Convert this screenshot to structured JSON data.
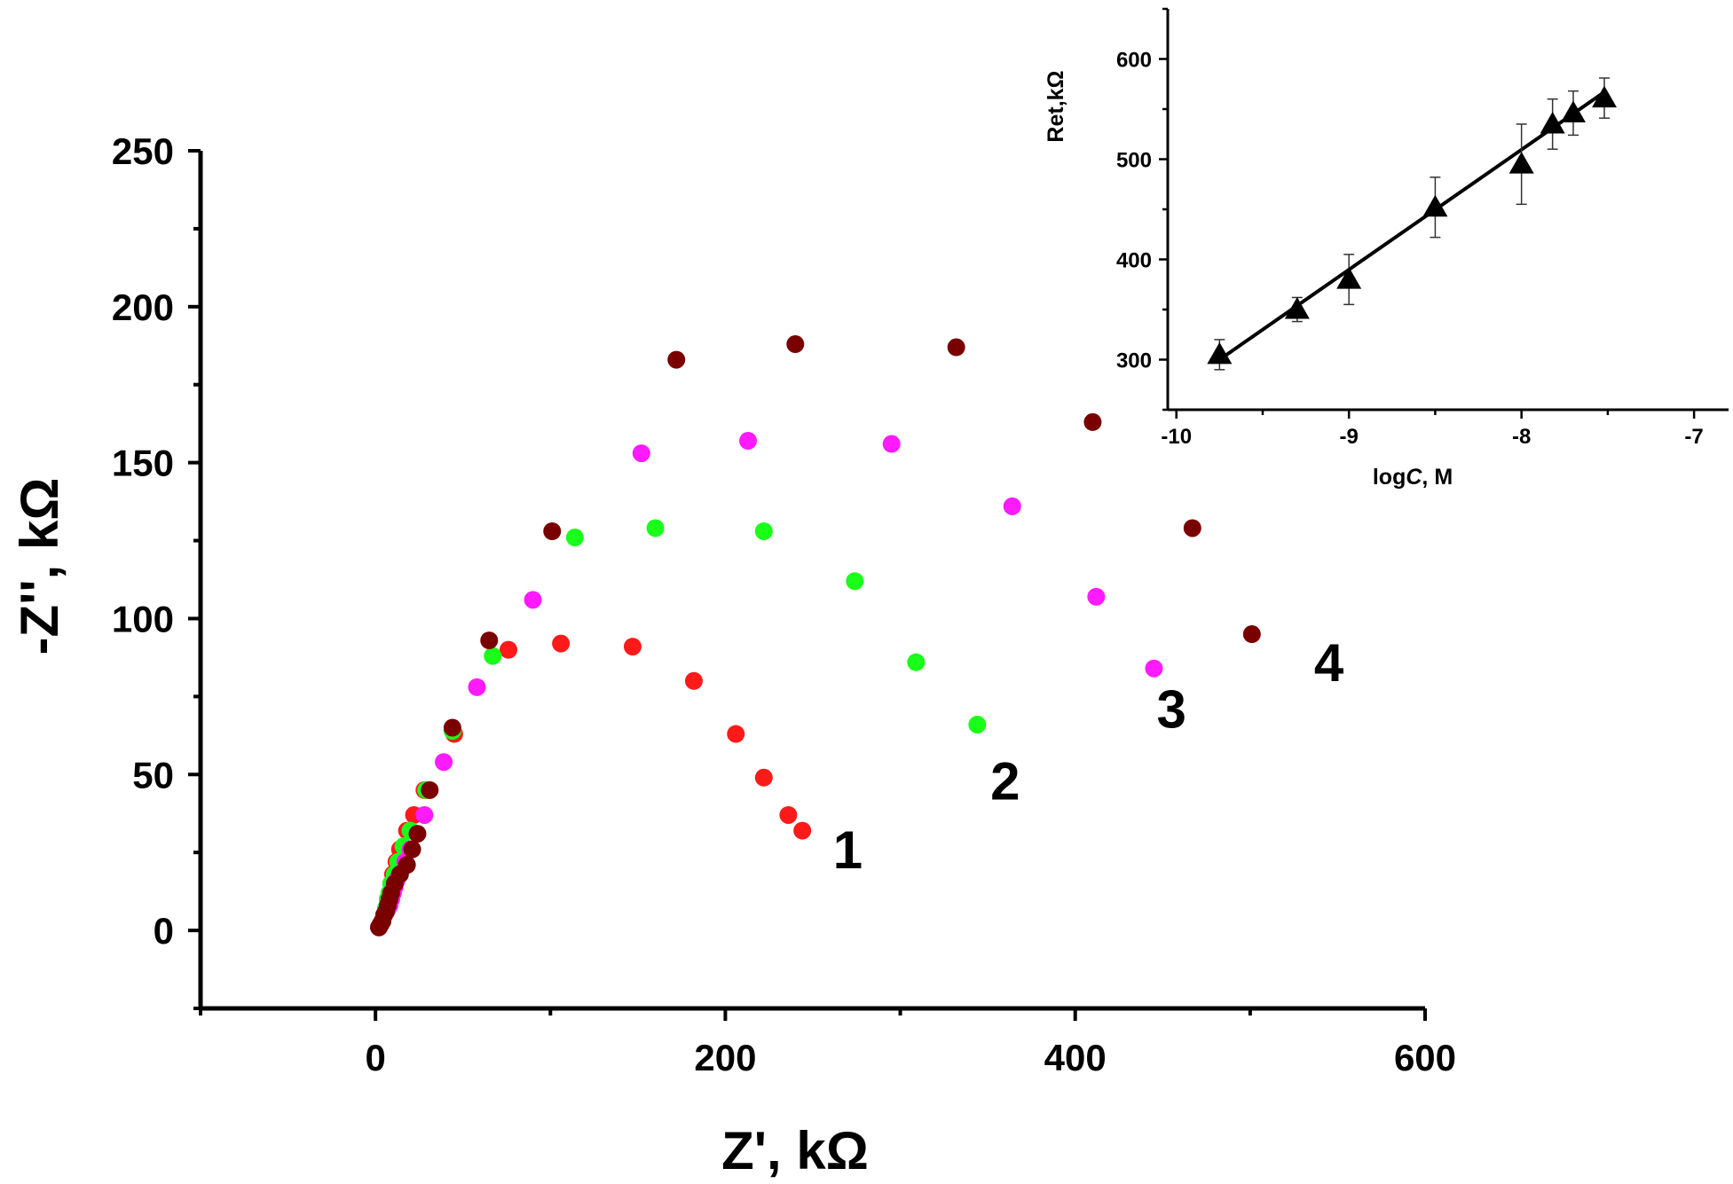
{
  "chart_data": [
    {
      "type": "scatter",
      "title": "",
      "xlabel": "Z', kΩ",
      "ylabel": "-Z'', kΩ",
      "xlim": [
        -100,
        600
      ],
      "ylim": [
        -25,
        250
      ],
      "x_ticks": [
        "0",
        "200",
        "400",
        "600"
      ],
      "y_ticks": [
        "0",
        "50",
        "100",
        "150",
        "200",
        "250"
      ],
      "grid": false,
      "series": [
        {
          "name": "1",
          "color": "#ff1a1a",
          "label_point": [
            270,
            20
          ],
          "points": [
            [
              2,
              1
            ],
            [
              3,
              2
            ],
            [
              4,
              3
            ],
            [
              5,
              5
            ],
            [
              6,
              7
            ],
            [
              7,
              10
            ],
            [
              8,
              12
            ],
            [
              9,
              15
            ],
            [
              10,
              18
            ],
            [
              12,
              22
            ],
            [
              14,
              26
            ],
            [
              18,
              32
            ],
            [
              22,
              37
            ],
            [
              28,
              45
            ],
            [
              45,
              63
            ],
            [
              76,
              90
            ],
            [
              106,
              92
            ],
            [
              147,
              91
            ],
            [
              182,
              80
            ],
            [
              206,
              63
            ],
            [
              222,
              49
            ],
            [
              236,
              37
            ],
            [
              244,
              32
            ]
          ]
        },
        {
          "name": "2",
          "color": "#1aff1a",
          "label_point": [
            360,
            42
          ],
          "points": [
            [
              2,
              1
            ],
            [
              3,
              2
            ],
            [
              4,
              3
            ],
            [
              5,
              5
            ],
            [
              6,
              7
            ],
            [
              7,
              10
            ],
            [
              8,
              12
            ],
            [
              9,
              15
            ],
            [
              11,
              18
            ],
            [
              13,
              22
            ],
            [
              16,
              27
            ],
            [
              20,
              32
            ],
            [
              29,
              45
            ],
            [
              44,
              64
            ],
            [
              67,
              88
            ],
            [
              114,
              126
            ],
            [
              160,
              129
            ],
            [
              222,
              128
            ],
            [
              274,
              112
            ],
            [
              309,
              86
            ],
            [
              344,
              66
            ]
          ]
        },
        {
          "name": "3",
          "color": "#ff1aff",
          "label_point": [
            455,
            65
          ],
          "points": [
            [
              2,
              1
            ],
            [
              3,
              2
            ],
            [
              4,
              3
            ],
            [
              5,
              5
            ],
            [
              6,
              6
            ],
            [
              7,
              7
            ],
            [
              8,
              8
            ],
            [
              9,
              10
            ],
            [
              10,
              12
            ],
            [
              11,
              14
            ],
            [
              12,
              16
            ],
            [
              14,
              18
            ],
            [
              17,
              22
            ],
            [
              20,
              26
            ],
            [
              28,
              37
            ],
            [
              39,
              54
            ],
            [
              58,
              78
            ],
            [
              90,
              106
            ],
            [
              152,
              153
            ],
            [
              213,
              157
            ],
            [
              295,
              156
            ],
            [
              364,
              136
            ],
            [
              412,
              107
            ],
            [
              445,
              84
            ]
          ]
        },
        {
          "name": "4",
          "color": "#7a0000",
          "label_point": [
            545,
            80
          ],
          "points": [
            [
              2,
              1
            ],
            [
              3,
              2
            ],
            [
              4,
              3
            ],
            [
              5,
              5
            ],
            [
              6,
              6
            ],
            [
              7,
              8
            ],
            [
              8,
              10
            ],
            [
              9,
              12
            ],
            [
              11,
              15
            ],
            [
              14,
              18
            ],
            [
              18,
              21
            ],
            [
              21,
              26
            ],
            [
              24,
              31
            ],
            [
              31,
              45
            ],
            [
              44,
              65
            ],
            [
              65,
              93
            ],
            [
              101,
              128
            ],
            [
              172,
              183
            ],
            [
              240,
              188
            ],
            [
              332,
              187
            ],
            [
              410,
              163
            ],
            [
              467,
              129
            ],
            [
              501,
              95
            ]
          ]
        }
      ]
    },
    {
      "type": "scatter",
      "title": "",
      "xlabel_prefix": "log",
      "xlabel_var": "C",
      "xlabel_suffix": ", M",
      "ylabel": "Ret,kΩ",
      "xlim": [
        -10.05,
        -6.8
      ],
      "ylim": [
        250,
        650
      ],
      "x_ticks": [
        "-10",
        "-9",
        "-8",
        "-7"
      ],
      "y_ticks": [
        "300",
        "400",
        "500",
        "600"
      ],
      "grid": false,
      "marker": "triangle",
      "color": "#000000",
      "x": [
        -9.75,
        -9.3,
        -9.0,
        -8.5,
        -8.0,
        -7.82,
        -7.7,
        -7.52
      ],
      "y": [
        305,
        350,
        380,
        452,
        495,
        535,
        546,
        561
      ],
      "error": [
        15,
        12,
        25,
        30,
        40,
        25,
        22,
        20
      ],
      "fit_line": {
        "x": [
          -9.75,
          -7.52
        ],
        "y": [
          300,
          567
        ]
      }
    }
  ]
}
